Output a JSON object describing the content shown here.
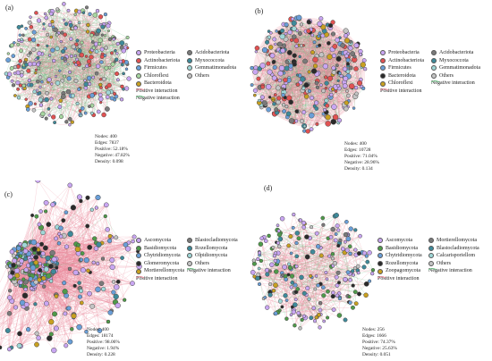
{
  "panels": [
    {
      "label": "(a)",
      "legend": {
        "col1": [
          {
            "name": "Proteobacteria",
            "color": "#c9a6f2"
          },
          {
            "name": "Actinobacteriota",
            "color": "#e15252"
          },
          {
            "name": "Firmicutes",
            "color": "#6a9fd8"
          },
          {
            "name": "Chloroflexi",
            "color": "#a7d6a0"
          },
          {
            "name": "Bacteroidota",
            "color": "#c8a020"
          }
        ],
        "col2": [
          {
            "name": "Acidobacteriota",
            "color": "#7a7a7a"
          },
          {
            "name": "Myxococcota",
            "color": "#3e8a9a"
          },
          {
            "name": "Gemmatimonadota",
            "color": "#9fd7d7"
          },
          {
            "name": "Others",
            "color": "#c4c4c4"
          }
        ],
        "positive": "Positive interaction",
        "negative": "Negative interaction"
      },
      "stats": {
        "nodes": "Nodes: 400",
        "edges": "Edges: 7837",
        "positive": "Positive: 52.18%",
        "negative": "Negative: 47.82%",
        "density": "Density: 0.098"
      }
    },
    {
      "label": "(b)",
      "legend": {
        "col1": [
          {
            "name": "Proteobacteria",
            "color": "#c9a6f2"
          },
          {
            "name": "Actinobacteriota",
            "color": "#e15252"
          },
          {
            "name": "Firmicutes",
            "color": "#6a9fd8"
          },
          {
            "name": "Bacteroidota",
            "color": "#2a2a2a"
          },
          {
            "name": "Chloroflexi",
            "color": "#c8a020"
          }
        ],
        "col2": [
          {
            "name": "Acidobacteriota",
            "color": "#7a7a7a"
          },
          {
            "name": "Myxococcota",
            "color": "#3e8a9a"
          },
          {
            "name": "Gemmatimonadota",
            "color": "#9fd7d7"
          },
          {
            "name": "Others",
            "color": "#c4c4c4"
          }
        ],
        "positive": "Positive interaction",
        "negative": "Negative interaction"
      },
      "stats": {
        "nodes": "Nodes: 400",
        "edges": "Edges: 10728",
        "positive": "Positive: 71.04%",
        "negative": "Negative: 28.96%",
        "density": "Density: 0.134"
      }
    },
    {
      "label": "(c)",
      "legend": {
        "col1": [
          {
            "name": "Ascomycota",
            "color": "#c9a6f2"
          },
          {
            "name": "Basidiomycota",
            "color": "#4f9a4a"
          },
          {
            "name": "Chytridiomycota",
            "color": "#6a9fd8"
          },
          {
            "name": "Glomeromycota",
            "color": "#2a2a2a"
          },
          {
            "name": "Mortierellomycota",
            "color": "#c8a020"
          }
        ],
        "col2": [
          {
            "name": "Blastocladiomycota",
            "color": "#7a7a7a"
          },
          {
            "name": "Rozellomycota",
            "color": "#3e8a9a"
          },
          {
            "name": "Olpidiomycota",
            "color": "#9fd7d7"
          },
          {
            "name": "Others",
            "color": "#c4c4c4"
          }
        ],
        "positive": "Positive interaction",
        "negative": "Negative interaction"
      },
      "stats": {
        "nodes": "Nodes: 400",
        "edges": "Edges: 18174",
        "positive": "Positive: 98.06%",
        "negative": "Negative: 1.94%",
        "density": "Density: 0.228"
      }
    },
    {
      "label": "(d)",
      "legend": {
        "col1": [
          {
            "name": "Ascomycota",
            "color": "#c9a6f2"
          },
          {
            "name": "Basidiomycota",
            "color": "#4f9a4a"
          },
          {
            "name": "Chytridiomycota",
            "color": "#6a9fd8"
          },
          {
            "name": "Rozellomycota",
            "color": "#2a2a2a"
          },
          {
            "name": "Zoopagomycota",
            "color": "#c8a020"
          }
        ],
        "col2": [
          {
            "name": "Mortierellomycota",
            "color": "#7a7a7a"
          },
          {
            "name": "Blastocladiomycota",
            "color": "#3e8a9a"
          },
          {
            "name": "Calcarisporiellom",
            "color": "#9fd7d7"
          },
          {
            "name": "Others",
            "color": "#c4c4c4"
          }
        ],
        "positive": "Positive interaction",
        "negative": "Negative interaction"
      },
      "stats": {
        "nodes": "Nodes: 256",
        "edges": "Edges: 1666",
        "positive": "Positive: 74.37%",
        "negative": "Negative: 25.63%",
        "density": "Density: 0.051"
      }
    }
  ],
  "colors": {
    "positive_edge": "#e98a9a",
    "negative_edge": "#6dbf83",
    "node_stroke": "#444444"
  }
}
